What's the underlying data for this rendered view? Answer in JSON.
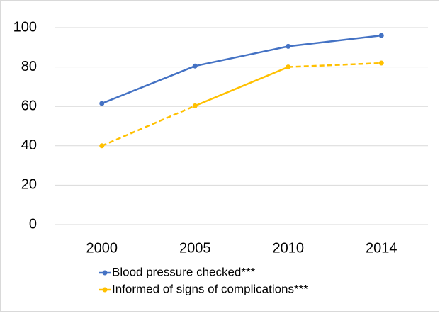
{
  "chart_data": {
    "type": "line",
    "categories": [
      "2000",
      "2005",
      "2010",
      "2014"
    ],
    "series": [
      {
        "name": "Blood pressure checked***",
        "color": "#4472c4",
        "values": [
          61.5,
          80.5,
          90.5,
          96
        ],
        "dashed_segments": [
          false,
          false,
          false
        ]
      },
      {
        "name": "Informed of signs of complications***",
        "color": "#ffc000",
        "values": [
          40,
          60.3,
          80,
          82
        ],
        "dashed_segments": [
          true,
          false,
          true
        ]
      }
    ],
    "ylim": [
      0,
      100
    ],
    "yticks": [
      0,
      20,
      40,
      60,
      80,
      100
    ],
    "grid": true,
    "legend": "bottom"
  }
}
